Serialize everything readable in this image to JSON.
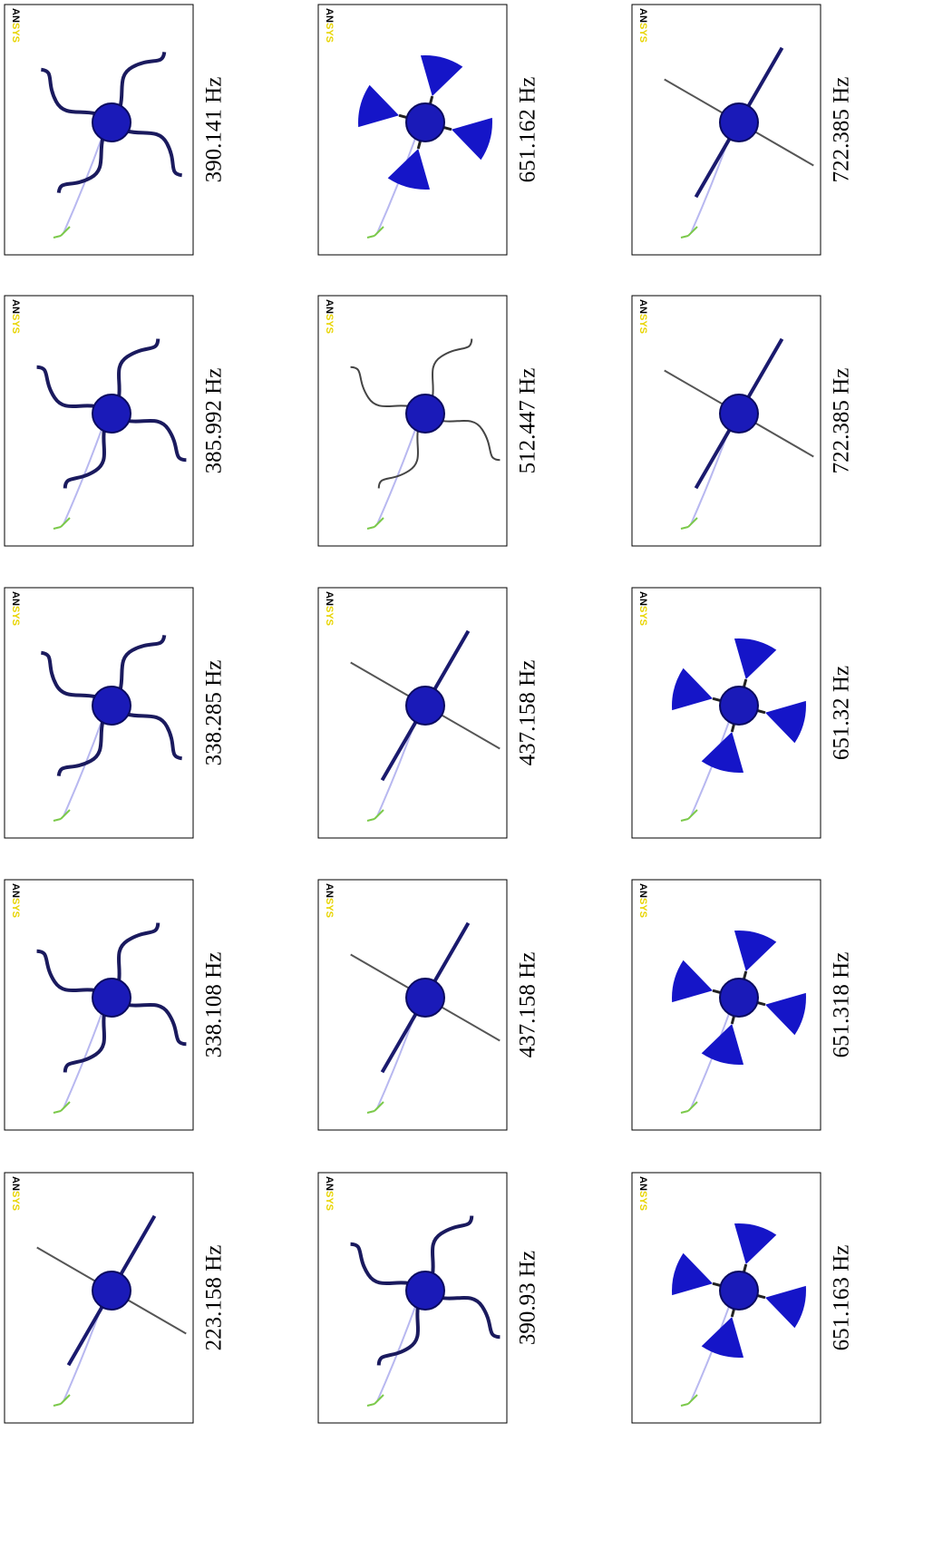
{
  "figure": {
    "logo_left": "AN",
    "logo_right": "SYS",
    "modes": [
      "223.158 Hz",
      "338.108 Hz",
      "338.285 Hz",
      "385.992 Hz",
      "390.141 Hz",
      "390.93 Hz",
      "437.158 Hz",
      "437.158 Hz",
      "512.447 Hz",
      "651.162 Hz",
      "651.163 Hz",
      "651.318 Hz",
      "651.32 Hz",
      "722.385 Hz",
      "722.385 Hz"
    ]
  }
}
